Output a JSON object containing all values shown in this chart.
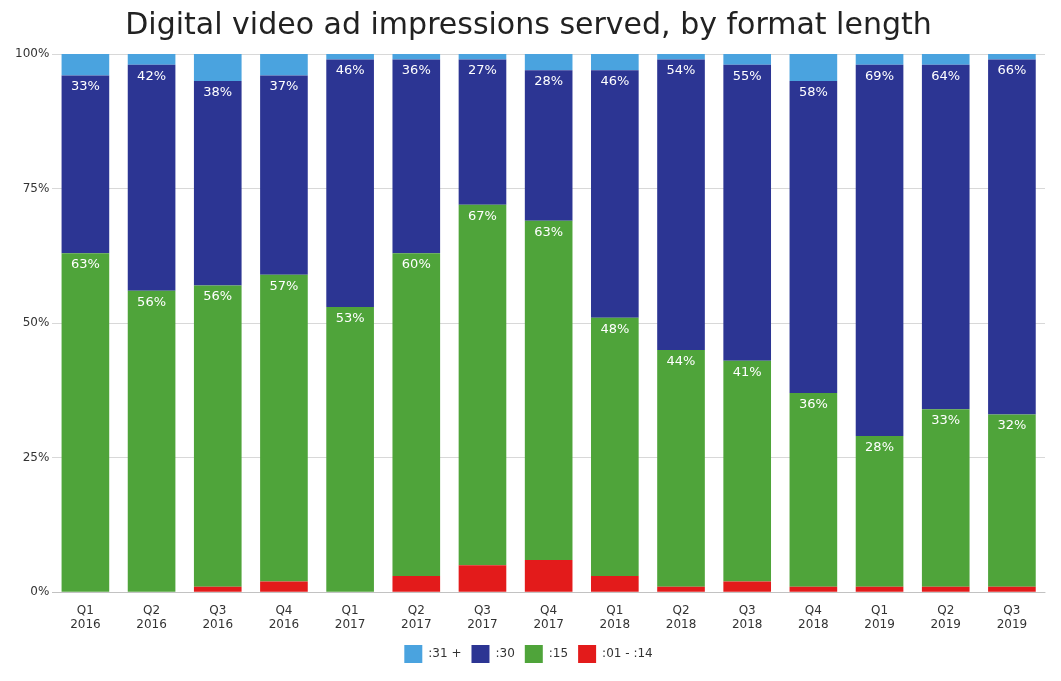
{
  "chart_data": {
    "type": "bar",
    "title": "Digital video ad impressions served, by format length",
    "stacked": true,
    "categories": [
      "Q1 2016",
      "Q2 2016",
      "Q3 2016",
      "Q4 2016",
      "Q1 2017",
      "Q2 2017",
      "Q3 2017",
      "Q4 2017",
      "Q1 2018",
      "Q2 2018",
      "Q3 2018",
      "Q4 2018",
      "Q1 2019",
      "Q2 2019",
      "Q3 2019"
    ],
    "series": [
      {
        "name": ":01 - :14",
        "color": "#e31b1b",
        "values": [
          0,
          0,
          1,
          2,
          0,
          3,
          5,
          6,
          3,
          1,
          2,
          1,
          1,
          1,
          1
        ]
      },
      {
        "name": ":15",
        "color": "#4fa43a",
        "values": [
          63,
          56,
          56,
          57,
          53,
          60,
          67,
          63,
          48,
          44,
          41,
          36,
          28,
          33,
          32
        ],
        "value_labels": [
          "63%",
          "56%",
          "56%",
          "57%",
          "53%",
          "60%",
          "67%",
          "63%",
          "48%",
          "44%",
          "41%",
          "36%",
          "28%",
          "33%",
          "32%"
        ]
      },
      {
        "name": ":30",
        "color": "#2c3593",
        "values": [
          33,
          42,
          38,
          37,
          46,
          36,
          27,
          28,
          46,
          54,
          55,
          58,
          69,
          64,
          66
        ],
        "value_labels": [
          "33%",
          "42%",
          "38%",
          "37%",
          "46%",
          "36%",
          "27%",
          "28%",
          "46%",
          "54%",
          "55%",
          "58%",
          "69%",
          "64%",
          "66%"
        ]
      },
      {
        "name": ":31 +",
        "color": "#4aa3df",
        "values": [
          4,
          2,
          5,
          4,
          1,
          1,
          1,
          3,
          3,
          1,
          2,
          5,
          2,
          2,
          1
        ]
      }
    ],
    "ylim": [
      0,
      100
    ],
    "yticks": [
      {
        "value": 0,
        "label": "0%"
      },
      {
        "value": 25,
        "label": "25%"
      },
      {
        "value": 50,
        "label": "50%"
      },
      {
        "value": 75,
        "label": "75%"
      },
      {
        "value": 100,
        "label": "100%"
      }
    ],
    "grid": "y",
    "legend": "bottom"
  }
}
